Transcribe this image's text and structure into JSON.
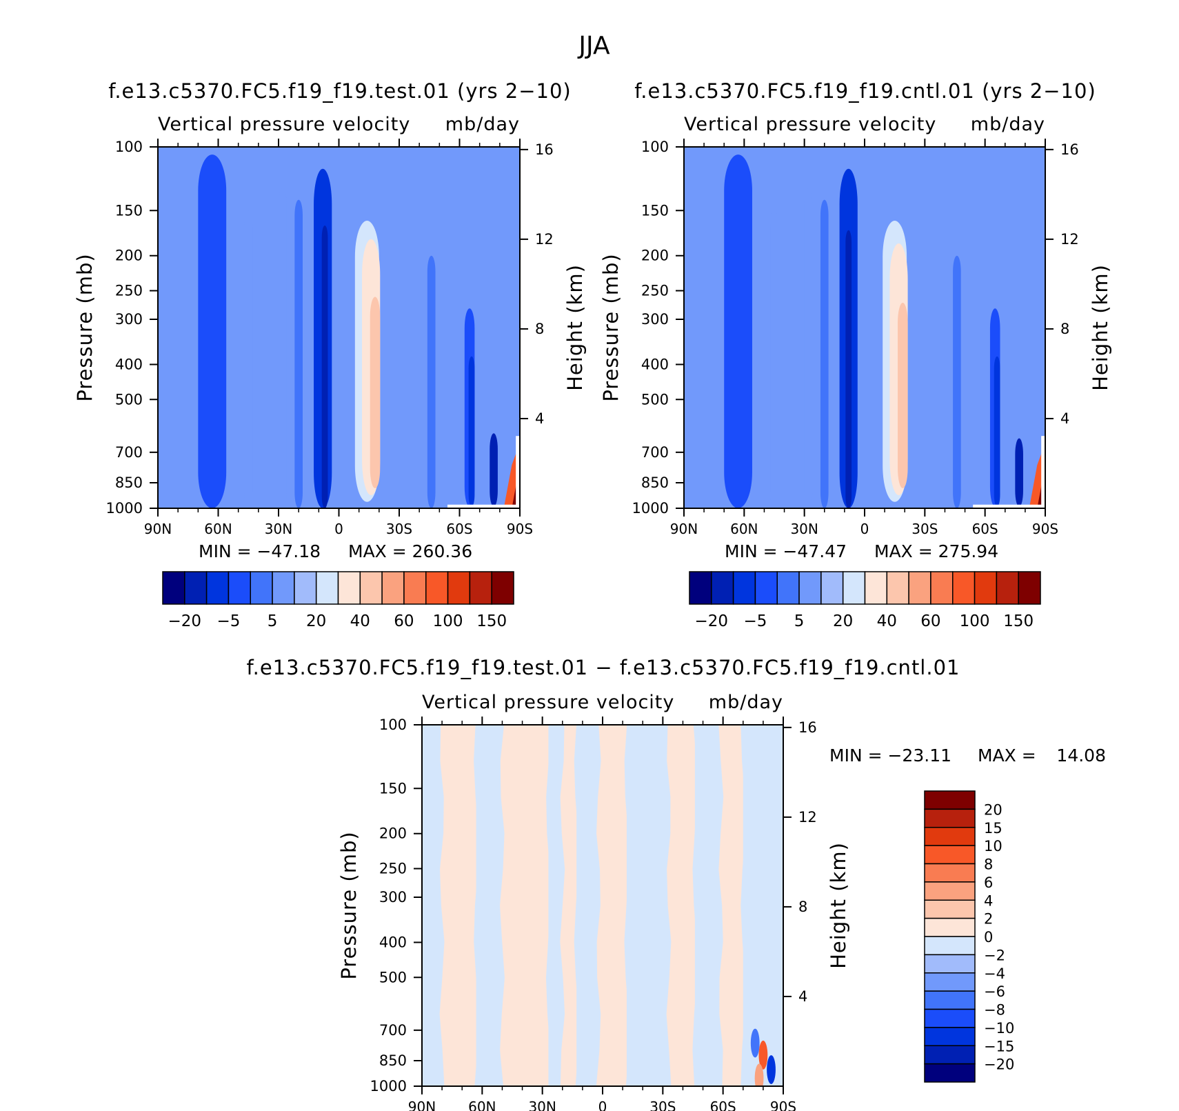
{
  "figure": {
    "title": "JJA"
  },
  "colors": {
    "blue_to_red": [
      "#00007d",
      "#0020b3",
      "#0035de",
      "#1b4dfa",
      "#4174fa",
      "#7199fb",
      "#a1bbfb",
      "#d4e6fc",
      "#fde5d8",
      "#fcc6ad",
      "#faa27f",
      "#f97c52",
      "#f85828",
      "#e13a0e",
      "#b7210d",
      "#7e0000"
    ]
  },
  "chart_data": [
    {
      "type": "heatmap",
      "title": "f.e13.c5370.FC5.f19_f19.test.01 (yrs 2−10)",
      "subtitle_left": "Vertical pressure velocity",
      "subtitle_right": "mb/day",
      "xlabel": "",
      "ylabel": "Pressure (mb)",
      "y2label": "Height (km)",
      "x_ticks": [
        "90N",
        "60N",
        "30N",
        "0",
        "30S",
        "60S",
        "90S"
      ],
      "x_values": [
        90,
        60,
        30,
        0,
        -30,
        -60,
        -90
      ],
      "y_ticks": [
        100,
        150,
        200,
        250,
        300,
        400,
        500,
        700,
        850,
        1000
      ],
      "y2_ticks": [
        16,
        12,
        8,
        4
      ],
      "y_scale": "log",
      "ylim": [
        1000,
        100
      ],
      "min_label": "MIN = −47.18",
      "max_label": "MAX = 260.36",
      "colorbar_labels": [
        "−20",
        "−5",
        "5",
        "20",
        "40",
        "60",
        "100",
        "150"
      ],
      "colorbar_orientation": "horizontal",
      "field_features": [
        {
          "lat": 63,
          "width": 14,
          "p_top": 105,
          "p_bot": 1000,
          "value": -12
        },
        {
          "lat": 45,
          "width": 4,
          "p_top": 150,
          "p_bot": 1000,
          "value": -4
        },
        {
          "lat": 28,
          "width": 4,
          "p_top": 130,
          "p_bot": 1000,
          "value": -4
        },
        {
          "lat": 20,
          "width": 4,
          "p_top": 140,
          "p_bot": 1000,
          "value": -8
        },
        {
          "lat": 8,
          "width": 9,
          "p_top": 115,
          "p_bot": 1000,
          "value": -28
        },
        {
          "lat": 7,
          "width": 3,
          "p_top": 165,
          "p_bot": 1000,
          "value": -40
        },
        {
          "lat": -14,
          "width": 12,
          "p_top": 160,
          "p_bot": 960,
          "value": 8
        },
        {
          "lat": -16,
          "width": 9,
          "p_top": 180,
          "p_bot": 920,
          "value": 14
        },
        {
          "lat": -18,
          "width": 5,
          "p_top": 260,
          "p_bot": 880,
          "value": 22
        },
        {
          "lat": -46,
          "width": 4,
          "p_top": 200,
          "p_bot": 1000,
          "value": -8
        },
        {
          "lat": -65,
          "width": 5,
          "p_top": 280,
          "p_bot": 990,
          "value": -15
        },
        {
          "lat": -66,
          "width": 3,
          "p_top": 380,
          "p_bot": 990,
          "value": -30
        },
        {
          "lat": -77,
          "width": 4,
          "p_top": 620,
          "p_bot": 990,
          "value": -40
        }
      ],
      "field_background": -3
    },
    {
      "type": "heatmap",
      "title": "f.e13.c5370.FC5.f19_f19.cntl.01 (yrs 2−10)",
      "subtitle_left": "Vertical pressure velocity",
      "subtitle_right": "mb/day",
      "xlabel": "",
      "ylabel": "Pressure (mb)",
      "y2label": "Height (km)",
      "x_ticks": [
        "90N",
        "60N",
        "30N",
        "0",
        "30S",
        "60S",
        "90S"
      ],
      "x_values": [
        90,
        60,
        30,
        0,
        -30,
        -60,
        -90
      ],
      "y_ticks": [
        100,
        150,
        200,
        250,
        300,
        400,
        500,
        700,
        850,
        1000
      ],
      "y2_ticks": [
        16,
        12,
        8,
        4
      ],
      "y_scale": "log",
      "ylim": [
        1000,
        100
      ],
      "min_label": "MIN = −47.47",
      "max_label": "MAX = 275.94",
      "colorbar_labels": [
        "−20",
        "−5",
        "5",
        "20",
        "40",
        "60",
        "100",
        "150"
      ],
      "colorbar_orientation": "horizontal",
      "field_features": [
        {
          "lat": 63,
          "width": 14,
          "p_top": 105,
          "p_bot": 1000,
          "value": -12
        },
        {
          "lat": 45,
          "width": 4,
          "p_top": 150,
          "p_bot": 1000,
          "value": -4
        },
        {
          "lat": 28,
          "width": 4,
          "p_top": 130,
          "p_bot": 1000,
          "value": -4
        },
        {
          "lat": 20,
          "width": 4,
          "p_top": 140,
          "p_bot": 1000,
          "value": -8
        },
        {
          "lat": 8,
          "width": 9,
          "p_top": 115,
          "p_bot": 1000,
          "value": -28
        },
        {
          "lat": 8,
          "width": 3,
          "p_top": 170,
          "p_bot": 1000,
          "value": -40
        },
        {
          "lat": -15,
          "width": 12,
          "p_top": 160,
          "p_bot": 960,
          "value": 8
        },
        {
          "lat": -17,
          "width": 9,
          "p_top": 185,
          "p_bot": 920,
          "value": 14
        },
        {
          "lat": -19,
          "width": 5,
          "p_top": 270,
          "p_bot": 880,
          "value": 22
        },
        {
          "lat": -46,
          "width": 4,
          "p_top": 200,
          "p_bot": 1000,
          "value": -8
        },
        {
          "lat": -65,
          "width": 5,
          "p_top": 280,
          "p_bot": 990,
          "value": -15
        },
        {
          "lat": -66,
          "width": 3,
          "p_top": 380,
          "p_bot": 990,
          "value": -30
        },
        {
          "lat": -77,
          "width": 4,
          "p_top": 640,
          "p_bot": 990,
          "value": -40
        }
      ],
      "field_background": -3
    },
    {
      "type": "heatmap",
      "title": "f.e13.c5370.FC5.f19_f19.test.01 − f.e13.c5370.FC5.f19_f19.cntl.01",
      "subtitle_left": "Vertical pressure velocity",
      "subtitle_right": "mb/day",
      "xlabel": "",
      "ylabel": "Pressure (mb)",
      "y2label": "Height (km)",
      "x_ticks": [
        "90N",
        "60N",
        "30N",
        "0",
        "30S",
        "60S",
        "90S"
      ],
      "x_values": [
        90,
        60,
        30,
        0,
        -30,
        -60,
        -90
      ],
      "y_ticks": [
        100,
        150,
        200,
        250,
        300,
        400,
        500,
        700,
        850,
        1000
      ],
      "y2_ticks": [
        16,
        12,
        8,
        4
      ],
      "y_scale": "log",
      "ylim": [
        1000,
        100
      ],
      "min_label": "MIN = −23.11",
      "max_label": "MAX =",
      "max_value": "14.08",
      "colorbar_labels": [
        "20",
        "15",
        "10",
        "8",
        "6",
        "4",
        "2",
        "0",
        "−2",
        "−4",
        "−6",
        "−8",
        "−10",
        "−15",
        "−20"
      ],
      "colorbar_orientation": "vertical",
      "field_bands": [
        {
          "lat_from": 90,
          "lat_to": 80,
          "value": -1
        },
        {
          "lat_from": 80,
          "lat_to": 63,
          "value": 1
        },
        {
          "lat_from": 63,
          "lat_to": 50,
          "value": -1
        },
        {
          "lat_from": 50,
          "lat_to": 27,
          "value": 1
        },
        {
          "lat_from": 27,
          "lat_to": 20,
          "value": -1
        },
        {
          "lat_from": 20,
          "lat_to": 13,
          "value": 1
        },
        {
          "lat_from": 13,
          "lat_to": 2,
          "value": -1
        },
        {
          "lat_from": 2,
          "lat_to": -12,
          "value": 1
        },
        {
          "lat_from": -12,
          "lat_to": -33,
          "value": -1
        },
        {
          "lat_from": -33,
          "lat_to": -46,
          "value": 1
        },
        {
          "lat_from": -46,
          "lat_to": -59,
          "value": -1
        },
        {
          "lat_from": -59,
          "lat_to": -70,
          "value": 1
        },
        {
          "lat_from": -70,
          "lat_to": -90,
          "value": -1
        }
      ],
      "field_spots": [
        {
          "lat": -80,
          "p": 820,
          "value": 8
        },
        {
          "lat": -76,
          "p": 760,
          "value": -8
        },
        {
          "lat": -84,
          "p": 900,
          "value": -12
        },
        {
          "lat": -78,
          "p": 950,
          "value": 5
        }
      ]
    }
  ]
}
